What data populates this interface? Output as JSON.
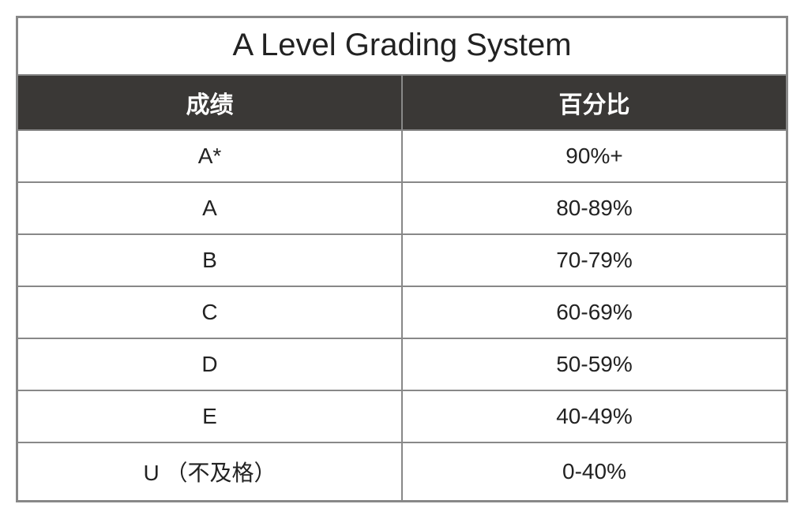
{
  "table": {
    "type": "table",
    "title": "A Level Grading System",
    "title_fontsize": 40,
    "title_color": "#222222",
    "columns": [
      "成绩",
      "百分比"
    ],
    "header_bg": "#3a3836",
    "header_text_color": "#ffffff",
    "header_fontsize": 30,
    "header_fontweight": 700,
    "rows": [
      [
        "A*",
        "90%+"
      ],
      [
        "A",
        "80-89%"
      ],
      [
        "B",
        "70-79%"
      ],
      [
        "C",
        "60-69%"
      ],
      [
        "D",
        "50-59%"
      ],
      [
        "E",
        "40-49%"
      ],
      [
        "U （不及格）",
        "0-40%"
      ]
    ],
    "cell_fontsize": 28,
    "cell_text_color": "#222222",
    "cell_bg": "#ffffff",
    "border_color": "#888888",
    "outer_border_width": 3,
    "inner_border_width": 2,
    "column_widths": [
      "50%",
      "50%"
    ],
    "text_align": "center"
  }
}
